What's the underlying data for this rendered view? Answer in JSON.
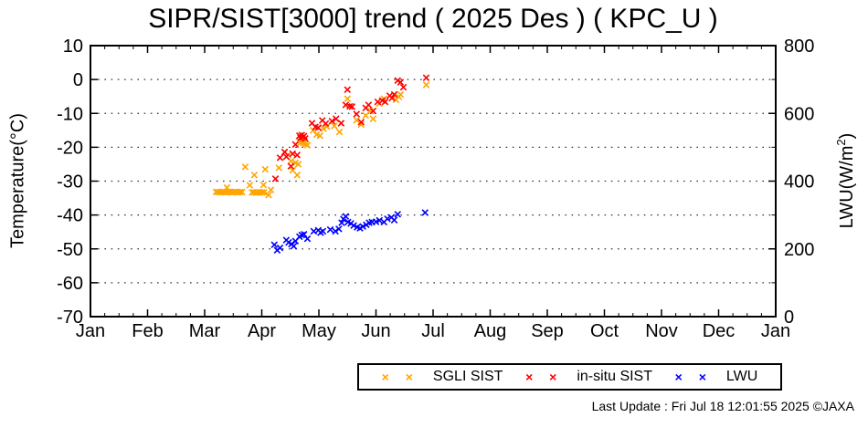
{
  "title": "SIPR/SIST[3000] trend ( 2025 Des ) ( KPC_U )",
  "footer": {
    "last_update": "Last Update : Fri Jul 18 12:01:55 2025  ©JAXA"
  },
  "axes": {
    "y_left": {
      "label": "Temperature(°C)",
      "tick_labels": [
        "10",
        "0",
        "-10",
        "-20",
        "-30",
        "-40",
        "-50",
        "-60",
        "-70"
      ]
    },
    "y_right": {
      "label_pre": "LWU(W/m",
      "label_sup": "2",
      "label_post": ")",
      "tick_labels": [
        "800",
        "600",
        "400",
        "200",
        "0"
      ]
    },
    "x": {
      "tick_labels": [
        "Jan",
        "Feb",
        "Mar",
        "Apr",
        "May",
        "Jun",
        "Jul",
        "Aug",
        "Sep",
        "Oct",
        "Nov",
        "Dec",
        "Jan"
      ]
    }
  },
  "legend_marker_glyphs": "× ×",
  "chart_data": {
    "type": "scatter",
    "title": "SIPR/SIST[3000] trend ( 2025 Des ) ( KPC_U )",
    "x_unit": "month_index_0_to_12 (0 = Jan 1, 6 = Jul 1)",
    "x_range": [
      0,
      12
    ],
    "grid": "horizontal dotted lines every 10°C from 0 to -60",
    "y_left_axis": {
      "label": "Temperature(°C)",
      "range": [
        -70,
        10
      ],
      "tick_step": 10
    },
    "y_right_axis": {
      "label": "LWU(W/m2)",
      "range": [
        0,
        800
      ],
      "tick_step": 200,
      "minor_tick_step": 100
    },
    "legend_position": "below plot, boxed",
    "series": [
      {
        "name": "SGLI SIST",
        "color": "#ffa500",
        "marker": "x",
        "axis": "left",
        "unit": "°C",
        "points": [
          [
            2.2,
            -33.2
          ],
          [
            2.235,
            -33.2
          ],
          [
            2.27,
            -33.3
          ],
          [
            2.305,
            -33.2
          ],
          [
            2.34,
            -33.2
          ],
          [
            2.375,
            -33.3
          ],
          [
            2.41,
            -33.2
          ],
          [
            2.445,
            -33.2
          ],
          [
            2.48,
            -33.3
          ],
          [
            2.515,
            -33.2
          ],
          [
            2.55,
            -33.2
          ],
          [
            2.585,
            -33.3
          ],
          [
            2.62,
            -33.2
          ],
          [
            2.655,
            -33.2
          ],
          [
            2.39,
            -31.9
          ],
          [
            2.71,
            -25.8
          ],
          [
            2.79,
            -31.2
          ],
          [
            2.87,
            -28.2
          ],
          [
            2.83,
            -33.3
          ],
          [
            2.865,
            -33.3
          ],
          [
            2.9,
            -33.4
          ],
          [
            2.935,
            -33.3
          ],
          [
            2.97,
            -33.3
          ],
          [
            3.005,
            -33.3
          ],
          [
            3.04,
            -33.3
          ],
          [
            3.03,
            -31.1
          ],
          [
            3.06,
            -26.5
          ],
          [
            3.12,
            -34.1
          ],
          [
            3.16,
            -32.6
          ],
          [
            3.3,
            -26.1
          ],
          [
            3.46,
            -22.3
          ],
          [
            3.51,
            -24.1
          ],
          [
            3.54,
            -26.8
          ],
          [
            3.59,
            -24.6
          ],
          [
            3.62,
            -28.2
          ],
          [
            3.64,
            -25.0
          ],
          [
            3.65,
            -18.2
          ],
          [
            3.68,
            -18.6
          ],
          [
            3.71,
            -18.3
          ],
          [
            3.73,
            -18.8
          ],
          [
            3.75,
            -18.4
          ],
          [
            3.77,
            -19.1
          ],
          [
            3.8,
            -19.4
          ],
          [
            3.9,
            -15.0
          ],
          [
            3.96,
            -16.3
          ],
          [
            4.02,
            -16.6
          ],
          [
            4.08,
            -14.5
          ],
          [
            4.14,
            -13.9
          ],
          [
            4.27,
            -13.7
          ],
          [
            4.36,
            -15.5
          ],
          [
            4.39,
            -12.9
          ],
          [
            4.5,
            -5.7
          ],
          [
            4.66,
            -12.0
          ],
          [
            4.74,
            -13.3
          ],
          [
            4.82,
            -10.6
          ],
          [
            4.9,
            -9.3
          ],
          [
            4.95,
            -11.6
          ],
          [
            5.06,
            -7.1
          ],
          [
            5.14,
            -5.7
          ],
          [
            5.35,
            -6.0
          ],
          [
            5.4,
            -5.1
          ],
          [
            5.43,
            -4.4
          ],
          [
            5.88,
            -1.6
          ]
        ]
      },
      {
        "name": "in-situ SIST",
        "color": "#ff0000",
        "marker": "x",
        "axis": "left",
        "unit": "°C",
        "points": [
          [
            3.24,
            -29.3
          ],
          [
            3.32,
            -23.1
          ],
          [
            3.4,
            -21.4
          ],
          [
            3.43,
            -22.8
          ],
          [
            3.51,
            -25.6
          ],
          [
            3.54,
            -21.9
          ],
          [
            3.59,
            -19.2
          ],
          [
            3.62,
            -22.3
          ],
          [
            3.66,
            -16.6
          ],
          [
            3.68,
            -17.2
          ],
          [
            3.7,
            -16.4
          ],
          [
            3.72,
            -17.0
          ],
          [
            3.74,
            -16.7
          ],
          [
            3.76,
            -17.4
          ],
          [
            3.88,
            -12.9
          ],
          [
            3.94,
            -14.0
          ],
          [
            3.99,
            -14.2
          ],
          [
            4.06,
            -12.1
          ],
          [
            4.12,
            -13.0
          ],
          [
            4.23,
            -12.3
          ],
          [
            4.3,
            -11.6
          ],
          [
            4.39,
            -12.9
          ],
          [
            4.47,
            -7.5
          ],
          [
            4.5,
            -3.0
          ],
          [
            4.54,
            -7.9
          ],
          [
            4.58,
            -8.0
          ],
          [
            4.66,
            -10.2
          ],
          [
            4.74,
            -12.6
          ],
          [
            4.82,
            -8.4
          ],
          [
            4.87,
            -7.5
          ],
          [
            4.95,
            -9.3
          ],
          [
            5.03,
            -6.6
          ],
          [
            5.11,
            -6.2
          ],
          [
            5.16,
            -6.6
          ],
          [
            5.24,
            -4.8
          ],
          [
            5.28,
            -5.5
          ],
          [
            5.32,
            -4.4
          ],
          [
            5.38,
            -0.3
          ],
          [
            5.43,
            -0.8
          ],
          [
            5.48,
            -2.3
          ],
          [
            5.88,
            0.5
          ]
        ]
      },
      {
        "name": "LWU",
        "color": "#0000ff",
        "marker": "x",
        "axis": "right",
        "unit": "W/m2",
        "points": [
          [
            3.22,
            212
          ],
          [
            3.27,
            196
          ],
          [
            3.32,
            203
          ],
          [
            3.43,
            226
          ],
          [
            3.47,
            219
          ],
          [
            3.52,
            214
          ],
          [
            3.56,
            208
          ],
          [
            3.59,
            223
          ],
          [
            3.66,
            236
          ],
          [
            3.7,
            241
          ],
          [
            3.74,
            243
          ],
          [
            3.8,
            230
          ],
          [
            3.91,
            252
          ],
          [
            3.99,
            255
          ],
          [
            4.03,
            248
          ],
          [
            4.07,
            252
          ],
          [
            4.2,
            257
          ],
          [
            4.29,
            252
          ],
          [
            4.35,
            259
          ],
          [
            4.4,
            277
          ],
          [
            4.43,
            288
          ],
          [
            4.47,
            296
          ],
          [
            4.51,
            279
          ],
          [
            4.56,
            275
          ],
          [
            4.61,
            269
          ],
          [
            4.67,
            264
          ],
          [
            4.72,
            261
          ],
          [
            4.77,
            266
          ],
          [
            4.83,
            271
          ],
          [
            4.88,
            277
          ],
          [
            4.93,
            279
          ],
          [
            5.0,
            280
          ],
          [
            5.06,
            284
          ],
          [
            5.14,
            279
          ],
          [
            5.2,
            289
          ],
          [
            5.27,
            293
          ],
          [
            5.32,
            285
          ],
          [
            5.38,
            302
          ],
          [
            5.86,
            307
          ]
        ]
      }
    ]
  }
}
